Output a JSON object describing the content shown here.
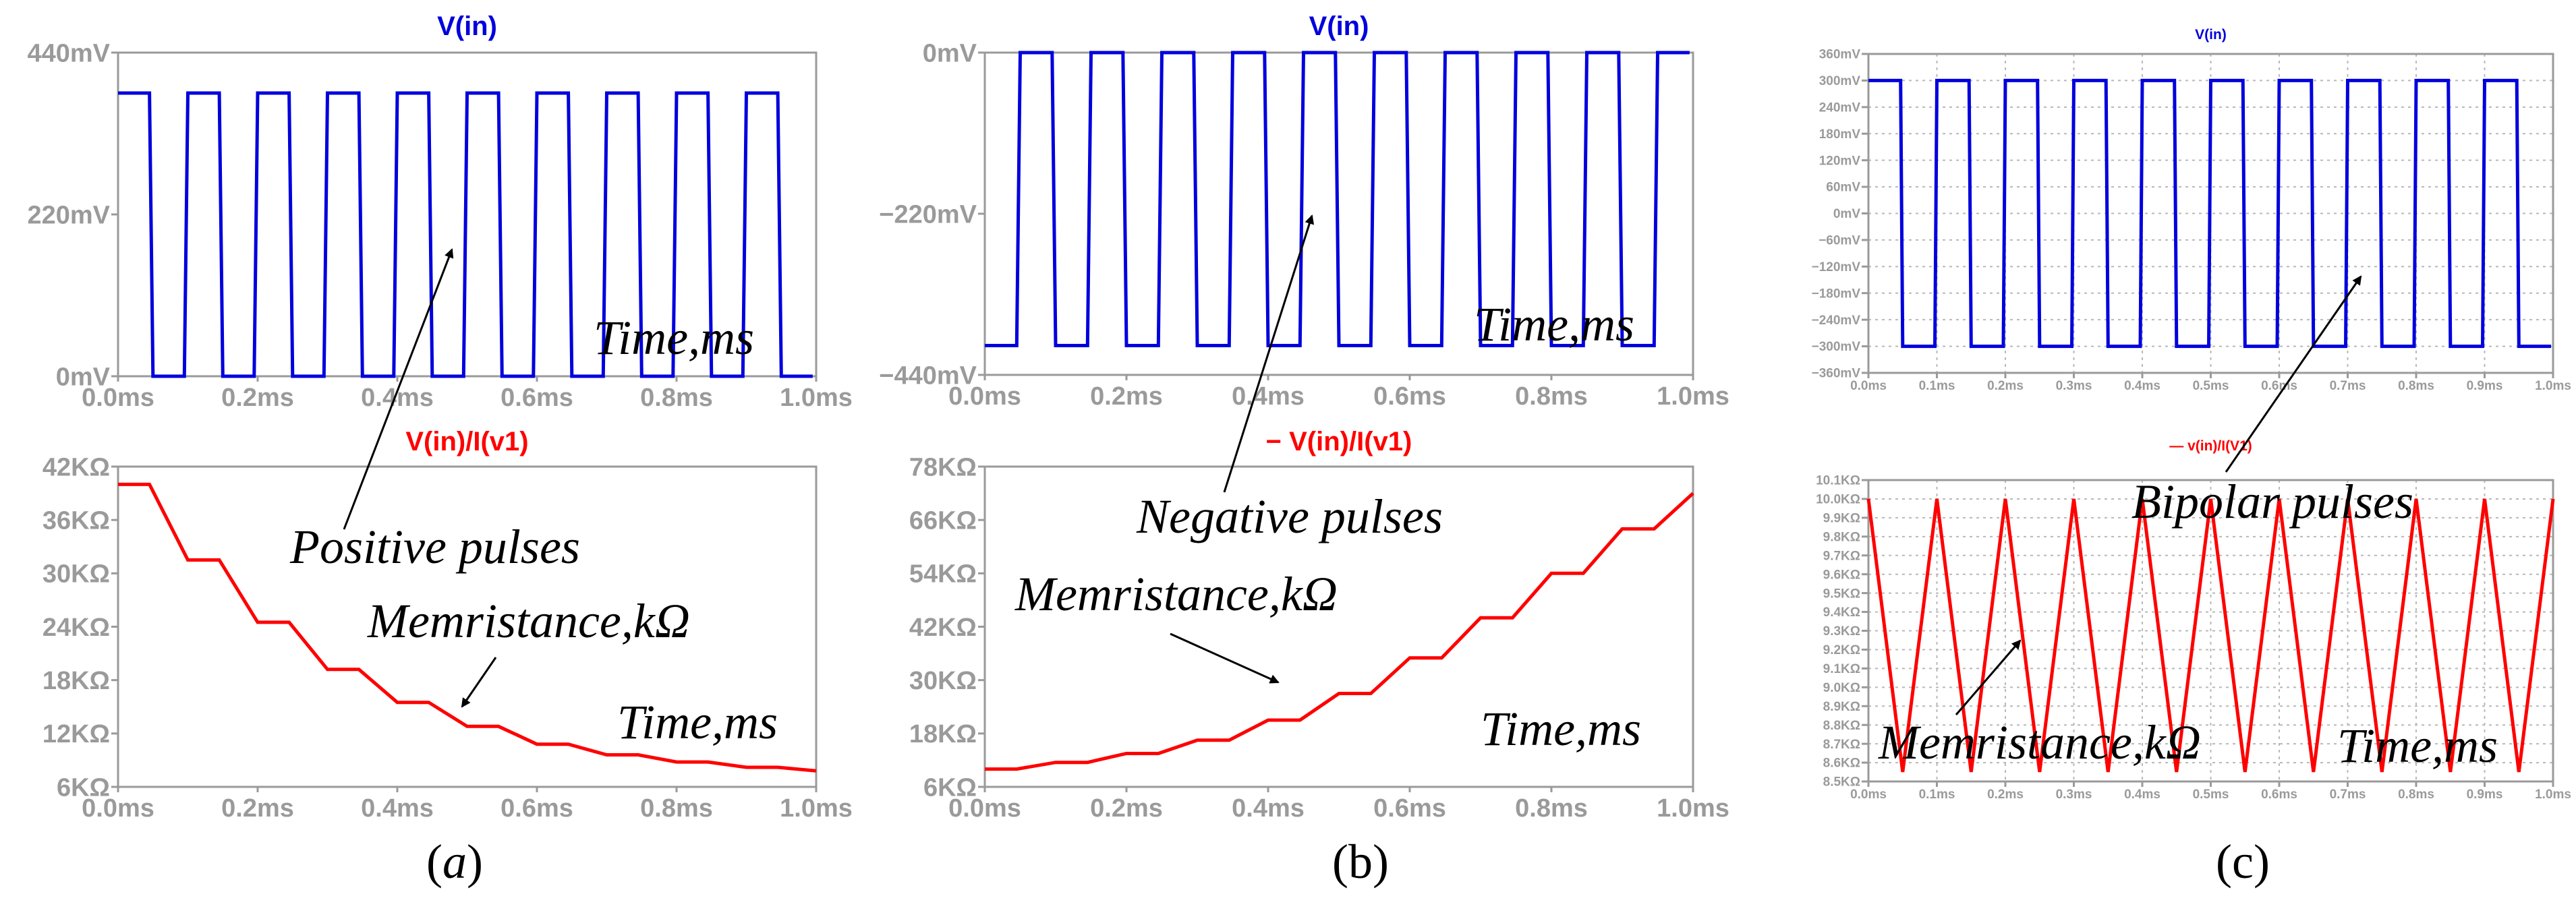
{
  "colors": {
    "voltage": "#0000dd",
    "memristance": "#ff0000",
    "axis": "#9a9a9a",
    "grid": "#b8b8b8",
    "text": "#000000"
  },
  "chart_data": [
    {
      "id": "a-top",
      "type": "line",
      "title": "V(in)",
      "x": {
        "min": 0,
        "max": 1.0,
        "ticks": [
          0,
          0.2,
          0.4,
          0.6,
          0.8,
          1.0
        ],
        "tick_labels": [
          "0.0ms",
          "0.2ms",
          "0.4ms",
          "0.6ms",
          "0.8ms",
          "1.0ms"
        ]
      },
      "y": {
        "min": 0,
        "max": 440,
        "ticks": [
          0,
          220,
          440
        ],
        "tick_labels": [
          "0mV",
          "220mV",
          "440mV"
        ]
      },
      "series": [
        {
          "name": "V(in)",
          "kind": "square",
          "period": 0.1,
          "high": 385,
          "low": 0,
          "duty": 0.5,
          "start_high": true,
          "rise": 0.005
        }
      ],
      "annotation": "Time,ms"
    },
    {
      "id": "a-bottom",
      "type": "line",
      "title": "V(in)/I(v1)",
      "x": {
        "min": 0,
        "max": 1.0,
        "ticks": [
          0,
          0.2,
          0.4,
          0.6,
          0.8,
          1.0
        ],
        "tick_labels": [
          "0.0ms",
          "0.2ms",
          "0.4ms",
          "0.6ms",
          "0.8ms",
          "1.0ms"
        ]
      },
      "y": {
        "min": 6,
        "max": 42,
        "ticks": [
          6,
          12,
          18,
          24,
          30,
          36,
          42
        ],
        "tick_labels": [
          "6KΩ",
          "12KΩ",
          "18KΩ",
          "24KΩ",
          "30KΩ",
          "36KΩ",
          "42KΩ"
        ]
      },
      "series": [
        {
          "name": "V(in)/I(v1)",
          "kind": "staircase",
          "levels": [
            40,
            31.5,
            24.5,
            19.2,
            15.5,
            12.8,
            10.8,
            9.6,
            8.8,
            8.2,
            7.8
          ],
          "period": 0.1,
          "ramp": 0.45
        }
      ],
      "annotation": "Time,ms"
    },
    {
      "id": "b-top",
      "type": "line",
      "title": "V(in)",
      "x": {
        "min": 0,
        "max": 1.0,
        "ticks": [
          0,
          0.2,
          0.4,
          0.6,
          0.8,
          1.0
        ],
        "tick_labels": [
          "0.0ms",
          "0.2ms",
          "0.4ms",
          "0.6ms",
          "0.8ms",
          "1.0ms"
        ]
      },
      "y": {
        "min": -440,
        "max": 0,
        "ticks": [
          -440,
          -220,
          0
        ],
        "tick_labels": [
          "−440mV",
          "−220mV",
          "0mV"
        ]
      },
      "series": [
        {
          "name": "V(in)",
          "kind": "square",
          "period": 0.1,
          "high": 0,
          "low": -400,
          "duty": 0.5,
          "start_high": false,
          "rise": 0.005
        }
      ],
      "annotation": "Time,ms"
    },
    {
      "id": "b-bottom",
      "type": "line",
      "title": "− V(in)/I(v1)",
      "x": {
        "min": 0,
        "max": 1.0,
        "ticks": [
          0,
          0.2,
          0.4,
          0.6,
          0.8,
          1.0
        ],
        "tick_labels": [
          "0.0ms",
          "0.2ms",
          "0.4ms",
          "0.6ms",
          "0.8ms",
          "1.0ms"
        ]
      },
      "y": {
        "min": 6,
        "max": 78,
        "ticks": [
          6,
          18,
          30,
          42,
          54,
          66,
          78
        ],
        "tick_labels": [
          "6KΩ",
          "18KΩ",
          "30KΩ",
          "42KΩ",
          "54KΩ",
          "66KΩ",
          "78KΩ"
        ]
      },
      "series": [
        {
          "name": "V(in)/I(v1)",
          "kind": "staircase",
          "levels": [
            10,
            11.5,
            13.5,
            16.5,
            21,
            27,
            35,
            44,
            54,
            64,
            72
          ],
          "period": 0.1,
          "ramp": 0.45
        }
      ],
      "annotation": "Time,ms"
    },
    {
      "id": "c-top",
      "type": "line",
      "title": "V(in)",
      "x": {
        "min": 0,
        "max": 1.0,
        "ticks": [
          0,
          0.1,
          0.2,
          0.3,
          0.4,
          0.5,
          0.6,
          0.7,
          0.8,
          0.9,
          1.0
        ],
        "tick_labels": [
          "0.0ms",
          "0.1ms",
          "0.2ms",
          "0.3ms",
          "0.4ms",
          "0.5ms",
          "0.6ms",
          "0.7ms",
          "0.8ms",
          "0.9ms",
          "1.0ms"
        ]
      },
      "y": {
        "min": -360,
        "max": 360,
        "ticks": [
          -360,
          -300,
          -240,
          -180,
          -120,
          -60,
          0,
          60,
          120,
          180,
          240,
          300,
          360
        ],
        "tick_labels": [
          "−360mV",
          "−300mV",
          "−240mV",
          "−180mV",
          "−120mV",
          "−60mV",
          "0mV",
          "60mV",
          "120mV",
          "180mV",
          "240mV",
          "300mV",
          "360mV"
        ]
      },
      "series": [
        {
          "name": "V(in)",
          "kind": "square",
          "period": 0.1,
          "high": 300,
          "low": -300,
          "duty": 0.5,
          "start_high": true,
          "rise": 0.003
        }
      ],
      "grid": true
    },
    {
      "id": "c-bottom",
      "type": "line",
      "title": "— v(in)/I(V1)",
      "x": {
        "min": 0,
        "max": 1.0,
        "ticks": [
          0,
          0.1,
          0.2,
          0.3,
          0.4,
          0.5,
          0.6,
          0.7,
          0.8,
          0.9,
          1.0
        ],
        "tick_labels": [
          "0.0ms",
          "0.1ms",
          "0.2ms",
          "0.3ms",
          "0.4ms",
          "0.5ms",
          "0.6ms",
          "0.7ms",
          "0.8ms",
          "0.9ms",
          "1.0ms"
        ]
      },
      "y": {
        "min": 8.5,
        "max": 10.1,
        "ticks": [
          8.5,
          8.6,
          8.7,
          8.8,
          8.9,
          9.0,
          9.1,
          9.2,
          9.3,
          9.4,
          9.5,
          9.6,
          9.7,
          9.8,
          9.9,
          10.0,
          10.1
        ],
        "tick_labels": [
          "8.5KΩ",
          "8.6KΩ",
          "8.7KΩ",
          "8.8KΩ",
          "8.9KΩ",
          "9.0KΩ",
          "9.1KΩ",
          "9.2KΩ",
          "9.3KΩ",
          "9.4KΩ",
          "9.5KΩ",
          "9.6KΩ",
          "9.7KΩ",
          "9.8KΩ",
          "9.9KΩ",
          "10.0KΩ",
          "10.1KΩ"
        ]
      },
      "series": [
        {
          "name": "v(in)/I(V1)",
          "kind": "triangle",
          "period": 0.1,
          "high": 10.0,
          "low": 8.55,
          "start_high": true
        }
      ],
      "grid": true
    }
  ],
  "annotations": {
    "a_time_top": "Time,ms",
    "a_pulses": "Positive pulses",
    "a_memristance": "Memristance,kΩ",
    "a_time_bottom": "Time,ms",
    "b_time_top": "Time,ms",
    "b_pulses": "Negative pulses",
    "b_memristance": "Memristance,kΩ",
    "b_time_bottom": "Time,ms",
    "c_pulses": "Bipolar pulses",
    "c_memristance": "Memristance,kΩ",
    "c_time_bottom": "Time,ms"
  },
  "captions": {
    "a": "a",
    "b": "b",
    "c": "c"
  }
}
